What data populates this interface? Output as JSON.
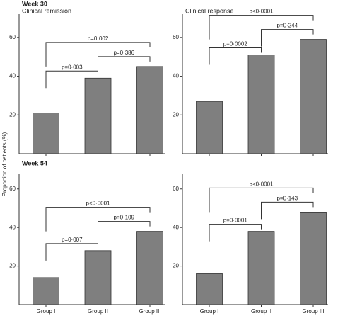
{
  "y_label": "Proportion of patients (%)",
  "chart_data": [
    {
      "type": "bar",
      "heading": "Week 30",
      "title": "Clinical remission",
      "categories": [
        null,
        null,
        null
      ],
      "values": [
        21,
        39,
        45
      ],
      "color": "#7f7f7f",
      "ylim": [
        0,
        72
      ],
      "yticks": [
        20,
        40,
        60
      ],
      "annotations": [
        {
          "text": "p=0·003",
          "pair": [
            0,
            1
          ]
        },
        {
          "text": "p=0·386",
          "pair": [
            1,
            2
          ]
        },
        {
          "text": "p=0·002",
          "pair": [
            0,
            2
          ]
        }
      ]
    },
    {
      "type": "bar",
      "title": "Clinical response",
      "categories": [
        null,
        null,
        null
      ],
      "values": [
        27,
        51,
        59
      ],
      "color": "#7f7f7f",
      "ylim": [
        0,
        72
      ],
      "yticks": [
        20,
        40,
        60
      ],
      "annotations": [
        {
          "text": "p=0·0002",
          "pair": [
            0,
            1
          ]
        },
        {
          "text": "p=0·244",
          "pair": [
            1,
            2
          ]
        },
        {
          "text": "p<0·0001",
          "pair": [
            0,
            2
          ]
        }
      ]
    },
    {
      "type": "bar",
      "heading": "Week 54",
      "categories": [
        "Group I",
        "Group II",
        "Group III"
      ],
      "values": [
        14,
        28,
        38
      ],
      "color": "#7f7f7f",
      "ylim": [
        0,
        68
      ],
      "yticks": [
        20,
        40,
        60
      ],
      "annotations": [
        {
          "text": "p=0·007",
          "pair": [
            0,
            1
          ]
        },
        {
          "text": "p=0·109",
          "pair": [
            1,
            2
          ]
        },
        {
          "text": "p<0·0001",
          "pair": [
            0,
            2
          ]
        }
      ]
    },
    {
      "type": "bar",
      "categories": [
        "Group I",
        "Group II",
        "Group III"
      ],
      "values": [
        16,
        38,
        48
      ],
      "color": "#7f7f7f",
      "ylim": [
        0,
        68
      ],
      "yticks": [
        20,
        40,
        60
      ],
      "annotations": [
        {
          "text": "p=0·0001",
          "pair": [
            0,
            1
          ]
        },
        {
          "text": "p=0·143",
          "pair": [
            1,
            2
          ]
        },
        {
          "text": "p<0·0001",
          "pair": [
            0,
            2
          ]
        }
      ]
    }
  ]
}
